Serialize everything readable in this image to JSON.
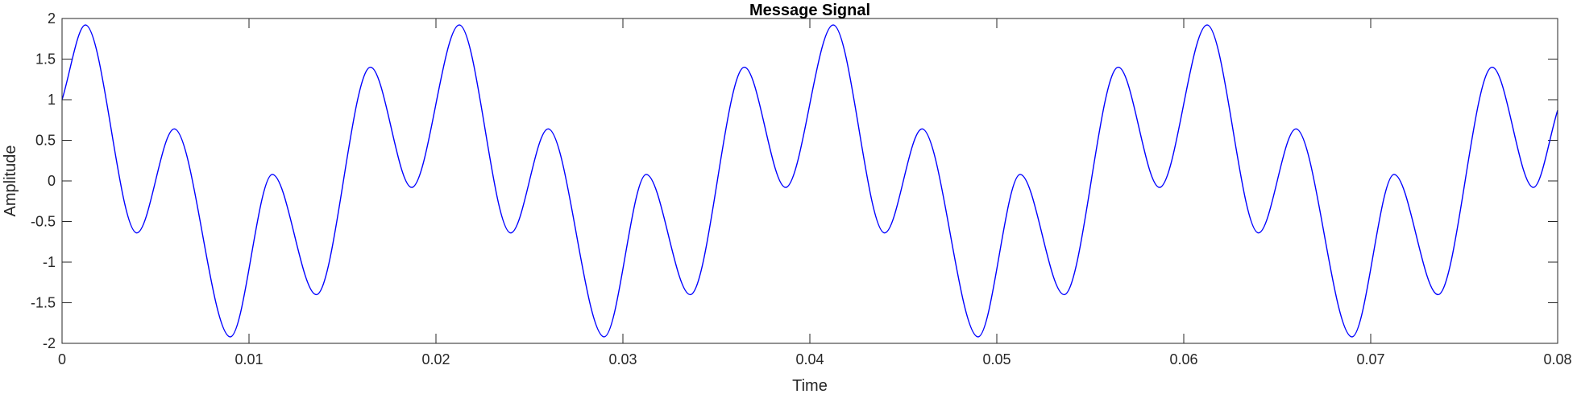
{
  "chart_data": {
    "type": "line",
    "title": "Message Signal",
    "xlabel": "Time",
    "ylabel": "Amplitude",
    "xlim": [
      0,
      0.08
    ],
    "ylim": [
      -2,
      2
    ],
    "xticks": [
      0,
      0.01,
      0.02,
      0.03,
      0.04,
      0.05,
      0.06,
      0.07,
      0.08
    ],
    "xtick_labels": [
      "0",
      "0.01",
      "0.02",
      "0.03",
      "0.04",
      "0.05",
      "0.06",
      "0.07",
      "0.08"
    ],
    "yticks": [
      -2,
      -1.5,
      -1,
      -0.5,
      0,
      0.5,
      1,
      1.5,
      2
    ],
    "ytick_labels": [
      "-2",
      "-1.5",
      "-1",
      "-0.5",
      "0",
      "0.5",
      "1",
      "1.5",
      "2"
    ],
    "grid": false,
    "series": [
      {
        "color": "#0000ff",
        "x": [
          0,
          0.00125,
          0.004,
          0.006,
          0.009,
          0.01125,
          0.0136,
          0.0165,
          0.0187,
          0.02125,
          0.024,
          0.026,
          0.029,
          0.03125,
          0.0336,
          0.0365,
          0.0387,
          0.04125,
          0.044,
          0.046,
          0.049,
          0.05125,
          0.0536,
          0.0565,
          0.0587,
          0.06125,
          0.064,
          0.066,
          0.069,
          0.07125,
          0.0736,
          0.0765,
          0.0787,
          0.08
        ],
        "y": [
          1.0,
          1.92,
          -0.64,
          0.64,
          -1.92,
          0.08,
          -1.4,
          1.4,
          -0.08,
          1.92,
          -0.64,
          0.64,
          -1.92,
          0.08,
          -1.4,
          1.4,
          -0.08,
          1.92,
          -0.64,
          0.64,
          -1.92,
          0.08,
          -1.4,
          1.4,
          -0.08,
          1.92,
          -0.64,
          0.64,
          -1.92,
          0.08,
          -1.4,
          1.4,
          -0.08,
          0.87
        ]
      }
    ],
    "colors": {
      "line": "#0000ff",
      "axes": "#262626"
    }
  }
}
